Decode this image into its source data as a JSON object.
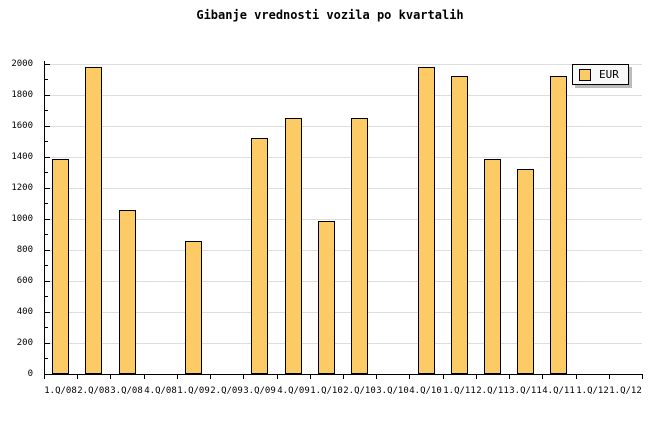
{
  "title": "Gibanje vrednosti vozila po kvartalih",
  "legend": {
    "label": "EUR"
  },
  "colors": {
    "background": "#FFFFFF",
    "bar_fill": "#FDCB66",
    "bar_border": "#000000",
    "axis": "#000000",
    "gridline": "#DDDDDD",
    "text": "#000000",
    "legend_bg": "#F8F8F8",
    "legend_shadow": "#BBBBBB"
  },
  "chart_data": {
    "type": "bar",
    "title": "Gibanje vrednosti vozila po kvartalih",
    "xlabel": "",
    "ylabel": "",
    "categories": [
      "1.Q/08",
      "2.Q/08",
      "3.Q/08",
      "4.Q/08",
      "1.Q/09",
      "2.Q/09",
      "3.Q/09",
      "4.Q/09",
      "1.Q/10",
      "2.Q/10",
      "3.Q/10",
      "4.Q/10",
      "1.Q/11",
      "2.Q/11",
      "3.Q/11",
      "4.Q/11",
      "1.Q/12",
      "1.Q/12"
    ],
    "series": [
      {
        "name": "EUR",
        "values": [
          1390,
          1980,
          1060,
          null,
          860,
          null,
          1520,
          1650,
          990,
          1650,
          null,
          1980,
          1920,
          1390,
          1320,
          1920,
          null,
          null
        ]
      }
    ],
    "ylim": [
      0,
      2000
    ],
    "ytick_major_step": 200,
    "ytick_minor_step": 100,
    "ytick_labels": [
      "0",
      "200",
      "400",
      "600",
      "800",
      "1000",
      "1200",
      "1400",
      "1600",
      "1800",
      "2000"
    ],
    "grid": true,
    "legend_position": "top-right"
  }
}
